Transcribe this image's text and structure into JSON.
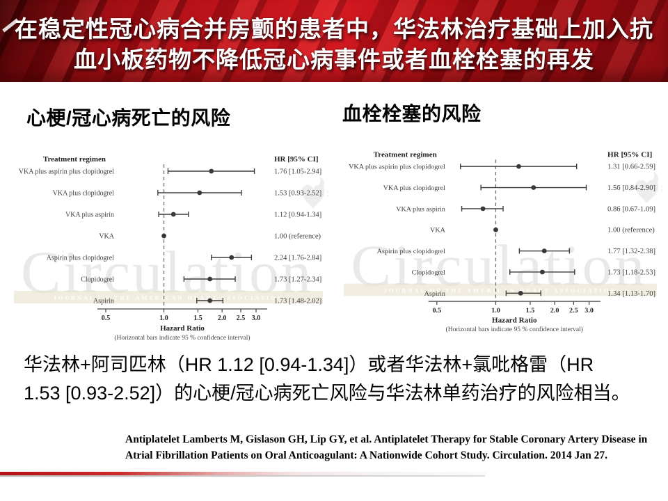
{
  "banner": {
    "title_line1": "在稳定性冠心病合并房颤的患者中，华法林治疗基础上加入抗",
    "title_line2": "血小板药物不降低冠心病事件或者血栓栓塞的再发",
    "background_color": "#a30f14",
    "text_color": "#ffffff"
  },
  "headings": {
    "left": "心梗/冠心病死亡的风险",
    "right": "血栓栓塞的风险"
  },
  "chart_data": [
    {
      "type": "scatter",
      "variant": "forest-plot",
      "title": "心梗/冠心病死亡的风险",
      "col_header_left": "Treatment regimen",
      "col_header_right": "HR [95% CI]",
      "categories": [
        "VKA plus aspirin plus clopidogrel",
        "VKA plus clopidogrel",
        "VKA plus aspirin",
        "VKA",
        "Aspirin plus clopidogrel",
        "Clopidogrel",
        "Aspirin"
      ],
      "series": [
        {
          "name": "HR",
          "values": [
            1.76,
            1.53,
            1.12,
            1.0,
            2.24,
            1.73,
            1.73
          ]
        },
        {
          "name": "CI low",
          "values": [
            1.05,
            0.93,
            0.94,
            null,
            1.76,
            1.27,
            1.48
          ]
        },
        {
          "name": "CI high",
          "values": [
            2.94,
            2.52,
            1.34,
            null,
            2.84,
            2.34,
            2.02
          ]
        }
      ],
      "hr_labels": [
        "1.76 [1.05-2.94]",
        "1.53 [0.93-2.52]",
        "1.12 [0.94-1.34]",
        "1.00 (reference)",
        "2.24 [1.76-2.84]",
        "1.73 [1.27-2.34]",
        "1.73 [1.48-2.02]"
      ],
      "xlabel": "Hazard Ratio",
      "x_note": "(Horizontal bars indicate 95 % confidence interval)",
      "x_ticks": [
        "0.5",
        "1.0",
        "1.5",
        "2.0",
        "2.5",
        "3.0"
      ],
      "x_scale": "log",
      "xlim": [
        0.5,
        3.0
      ],
      "reference_line": 1.0,
      "grid": false,
      "legend": false,
      "watermark": "Circulation",
      "watermark_strip": "JOURNAL OF THE AMERICAN HEART ASSOCIATION"
    },
    {
      "type": "scatter",
      "variant": "forest-plot",
      "title": "血栓栓塞的风险",
      "col_header_left": "Treatment regimen",
      "col_header_right": "HR [95% CI]",
      "categories": [
        "VKA plus aspirin plus clopidogrel",
        "VKA plus clopidogrel",
        "VKA plus aspirin",
        "VKA",
        "Aspirin plus clopidogrel",
        "Clopidogrel",
        "Aspirin"
      ],
      "series": [
        {
          "name": "HR",
          "values": [
            1.31,
            1.56,
            0.86,
            1.0,
            1.77,
            1.73,
            1.34
          ]
        },
        {
          "name": "CI low",
          "values": [
            0.66,
            0.84,
            0.67,
            null,
            1.32,
            1.18,
            1.13
          ]
        },
        {
          "name": "CI high",
          "values": [
            2.59,
            2.9,
            1.09,
            null,
            2.38,
            2.53,
            1.7
          ]
        }
      ],
      "hr_labels": [
        "1.31 [0.66-2.59]",
        "1.56 [0.84-2.90]",
        "0.86 [0.67-1.09]",
        "1.00 (reference)",
        "1.77 [1.32-2.38]",
        "1.73 [1.18-2.53]",
        "1.34 [1.13-1.70]"
      ],
      "xlabel": "Hazard Ratio",
      "x_note": "(Horizontal bars indicate 95 % confidence interval)",
      "x_ticks": [
        "0.5",
        "1.0",
        "1.5",
        "2.0",
        "2.5",
        "3.0"
      ],
      "x_scale": "log",
      "xlim": [
        0.5,
        3.0
      ],
      "reference_line": 1.0,
      "grid": false,
      "legend": false,
      "watermark": "Circulation",
      "watermark_strip": "JOURNAL OF THE AMERICAN HEART ASSOCIATION"
    }
  ],
  "summary": {
    "line1": "华法林+阿司匹林（HR 1.12 [0.94-1.34]）或者华法林+氯吡格雷（HR",
    "line2": "1.53 [0.93-2.52]）的心梗/冠心病死亡风险与华法林单药治疗的风险相当。"
  },
  "citation": {
    "line1": "Antiplatelet Lamberts M, Gislason GH, Lip GY, et al. Antiplatelet Therapy for Stable Coronary Artery Disease in",
    "line2": "Atrial Fibrillation Patients on Oral Anticoagulant: A Nationwide Cohort Study. Circulation. 2014 Jan 27."
  },
  "colors": {
    "banner_red": "#a30f14",
    "divider_red": "#b01217",
    "plot_ink": "#3d3d3d",
    "watermark_gray": "#cfcfcf",
    "strip_beige": "#e7dfcc"
  }
}
